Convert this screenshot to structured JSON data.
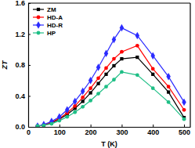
{
  "chart_data": {
    "type": "line",
    "x_label": "T (K)",
    "y_label": "ZT",
    "x": [
      30,
      50,
      75,
      100,
      125,
      150,
      175,
      200,
      225,
      250,
      275,
      300,
      350,
      400,
      450,
      500
    ],
    "series": [
      {
        "name": "ZM",
        "color": "#000000",
        "marker": "square",
        "values": [
          0.01,
          0.02,
          0.05,
          0.1,
          0.16,
          0.24,
          0.33,
          0.44,
          0.56,
          0.68,
          0.79,
          0.88,
          0.9,
          0.68,
          0.45,
          0.12
        ]
      },
      {
        "name": "HD-A",
        "color": "#ff0000",
        "marker": "circle",
        "values": [
          0.01,
          0.02,
          0.06,
          0.11,
          0.18,
          0.27,
          0.38,
          0.5,
          0.63,
          0.76,
          0.88,
          0.97,
          1.05,
          0.75,
          0.52,
          0.22
        ]
      },
      {
        "name": "HD-R",
        "color": "#2b2bff",
        "marker": "diamond",
        "values": [
          0.01,
          0.03,
          0.07,
          0.13,
          0.22,
          0.33,
          0.46,
          0.6,
          0.77,
          0.95,
          1.13,
          1.28,
          1.18,
          0.92,
          0.65,
          0.32
        ]
      },
      {
        "name": "HP",
        "color": "#1fbf86",
        "marker": "circle",
        "values": [
          0.01,
          0.02,
          0.04,
          0.08,
          0.13,
          0.19,
          0.26,
          0.34,
          0.43,
          0.52,
          0.61,
          0.71,
          0.67,
          0.5,
          0.32,
          0.1
        ]
      }
    ],
    "xlim": [
      0,
      520
    ],
    "xticks": [
      0,
      100,
      200,
      300,
      400,
      500
    ],
    "ylim": [
      0,
      1.6
    ],
    "yticks": [
      {
        "value": 0,
        "label": "0.0"
      },
      0.4,
      0.8,
      1.2,
      1.6
    ],
    "legend": "top-left",
    "grid": false
  }
}
